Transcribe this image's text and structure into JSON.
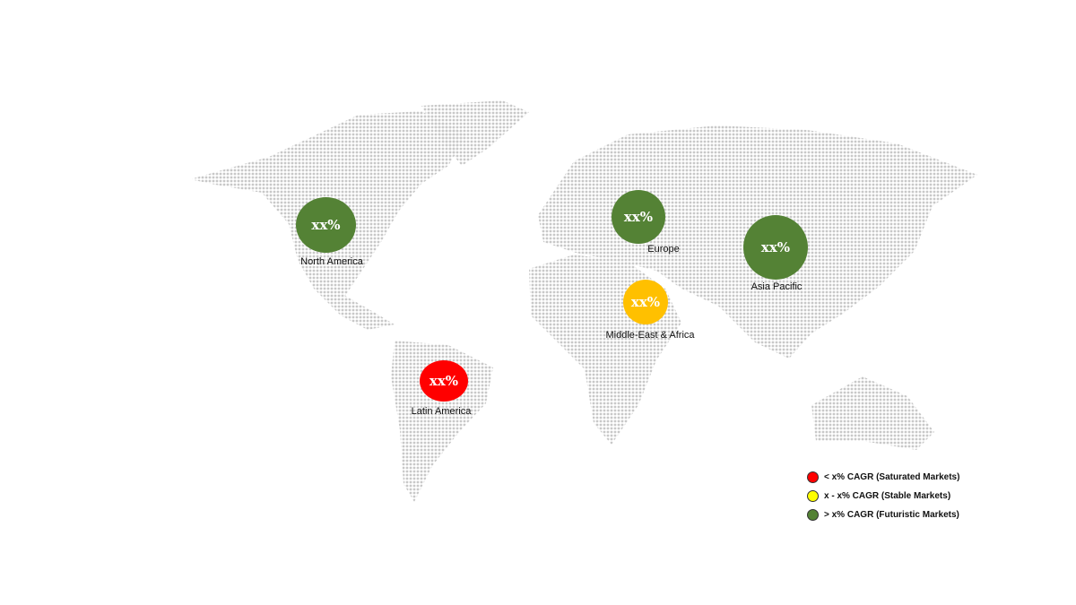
{
  "regions": [
    {
      "name": "North America",
      "value": "xx%",
      "color": "#548235"
    },
    {
      "name": "Europe",
      "value": "xx%",
      "color": "#548235"
    },
    {
      "name": "Asia Pacific",
      "value": "xx%",
      "color": "#548235"
    },
    {
      "name": "Middle-East & Africa",
      "value": "xx%",
      "color": "#FFC000"
    },
    {
      "name": "Latin America",
      "value": "xx%",
      "color": "#FF0000"
    }
  ],
  "legend": [
    {
      "label": "< x% CAGR (Saturated Markets)",
      "color": "#FF0000"
    },
    {
      "label": "x - x% CAGR (Stable Markets)",
      "color": "#FFFF00"
    },
    {
      "label": "> x% CAGR (Futuristic Markets)",
      "color": "#548235"
    }
  ]
}
